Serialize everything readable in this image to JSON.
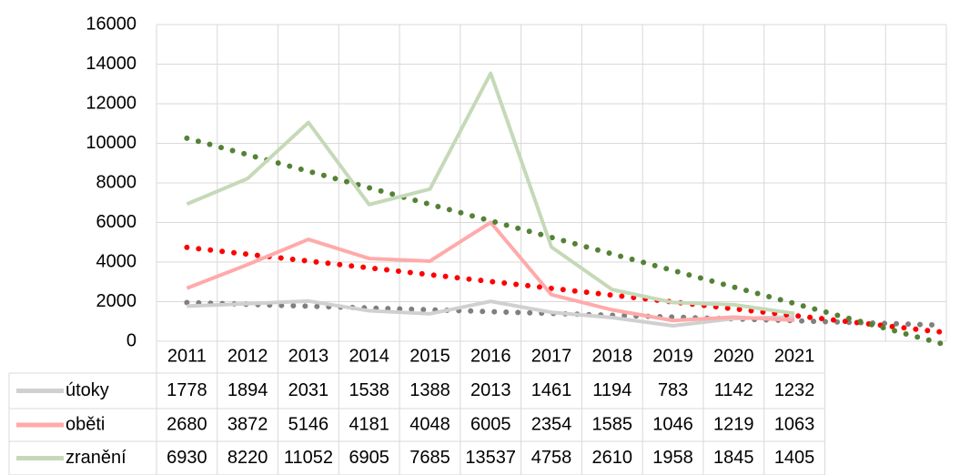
{
  "chart_data": {
    "type": "line",
    "categories": [
      "2011",
      "2012",
      "2013",
      "2014",
      "2015",
      "2016",
      "2017",
      "2018",
      "2019",
      "2020",
      "2021",
      null,
      null
    ],
    "series": [
      {
        "name": "útoky",
        "color": "#d0d0d0",
        "trend_color": "#7f7f7f",
        "values": [
          1778,
          1894,
          2031,
          1538,
          1388,
          2013,
          1461,
          1194,
          783,
          1142,
          1232,
          null,
          null
        ]
      },
      {
        "name": "oběti",
        "color": "#ffaaaa",
        "trend_color": "#ff0000",
        "values": [
          2680,
          3872,
          5146,
          4181,
          4048,
          6005,
          2354,
          1585,
          1046,
          1219,
          1063,
          null,
          null
        ]
      },
      {
        "name": "zranění",
        "color": "#c5d9b8",
        "trend_color": "#548235",
        "values": [
          6930,
          8220,
          11052,
          6905,
          7685,
          13537,
          4758,
          2610,
          1958,
          1845,
          1405,
          null,
          null
        ]
      }
    ],
    "trendline": "linear",
    "ylim": [
      0,
      16000
    ],
    "yticks": [
      0,
      2000,
      4000,
      6000,
      8000,
      10000,
      12000,
      14000,
      16000
    ],
    "grid": true,
    "data_table": true
  }
}
